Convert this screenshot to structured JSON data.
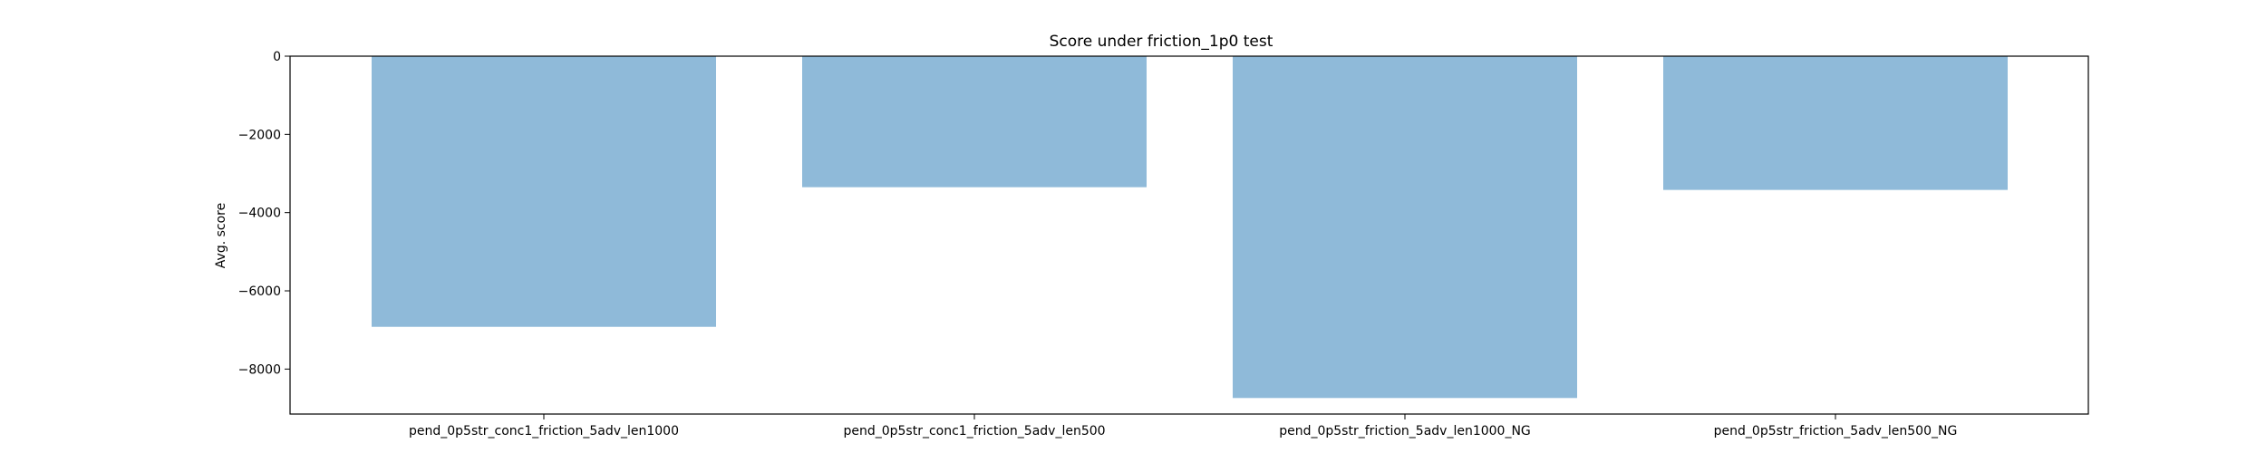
{
  "chart_data": {
    "type": "bar",
    "title": "Score under friction_1p0 test",
    "xlabel": "",
    "ylabel": "Avg. score",
    "categories": [
      "pend_0p5str_conc1_friction_5adv_len1000",
      "pend_0p5str_conc1_friction_5adv_len500",
      "pend_0p5str_friction_5adv_len1000_NG",
      "pend_0p5str_friction_5adv_len500_NG"
    ],
    "values": [
      -6920,
      -3350,
      -8740,
      -3420
    ],
    "ylim": [
      -9150,
      0
    ],
    "yticks": [
      0,
      -2000,
      -4000,
      -6000,
      -8000
    ],
    "ytick_labels": [
      "0",
      "−2000",
      "−4000",
      "−6000",
      "−8000"
    ],
    "grid": false,
    "legend": "none",
    "colors": {
      "bar": "#8fbad9",
      "axis": "#000000",
      "background": "#ffffff"
    }
  }
}
